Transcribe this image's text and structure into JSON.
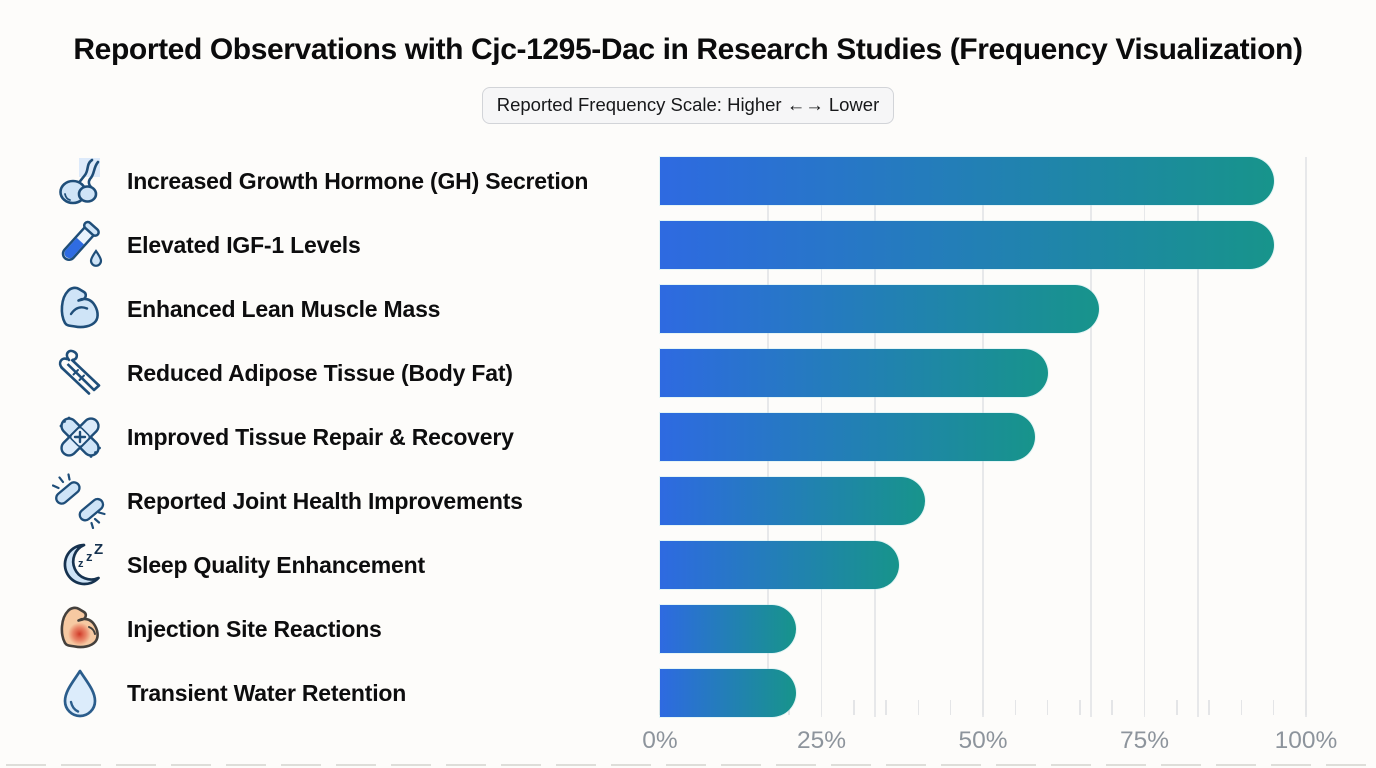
{
  "chart_data": {
    "type": "bar",
    "orientation": "horizontal",
    "title": "Reported Observations with Cjc-1295-Dac in Research Studies (Frequency Visualization)",
    "subtitle_badge": "Reported Frequency Scale: Higher ←→ Lower",
    "categories": [
      "Increased Growth Hormone (GH) Secretion",
      "Elevated IGF-1 Levels",
      "Enhanced Lean Muscle Mass",
      "Reduced Adipose Tissue (Body Fat)",
      "Improved Tissue Repair & Recovery",
      "Reported Joint Health Improvements",
      "Sleep Quality Enhancement",
      "Injection Site Reactions",
      "Transient Water Retention"
    ],
    "values": [
      95,
      95,
      68,
      60,
      58,
      41,
      37,
      21,
      21
    ],
    "unit": "%",
    "xlim": [
      0,
      100
    ],
    "x_ticks": [
      {
        "label": "0%",
        "pct": 0
      },
      {
        "label": "25%",
        "pct": 25
      },
      {
        "label": "50%",
        "pct": 50
      },
      {
        "label": "75%",
        "pct": 75
      },
      {
        "label": "100%",
        "pct": 100
      }
    ],
    "legend": "none",
    "grid": "vertical-light",
    "layout": {
      "gridline_pcts": [
        16.7,
        25,
        33.3,
        50,
        66.7,
        75,
        83.3,
        100
      ],
      "minor_tick_step_pct": 5
    },
    "colors": {
      "bar_gradient_start": "#2e6ae1",
      "bar_gradient_end": "#17948b",
      "gridline": "#e7e8ea",
      "axis_label": "#8d949c",
      "label_text": "#0d0d0e",
      "badge_bg": "#f6f6f7",
      "badge_border": "#d2d4d8",
      "background": "#fdfcfa",
      "icon_fill": "#cfe4f7",
      "icon_stroke": "#1f4e79"
    }
  },
  "rows": [
    {
      "icon": "pituitary-gland-icon",
      "label": "Increased Growth Hormone (GH) Secretion",
      "value_pct": 95
    },
    {
      "icon": "test-tube-icon",
      "label": "Elevated IGF-1 Levels",
      "value_pct": 95
    },
    {
      "icon": "flexed-bicep-icon",
      "label": "Enhanced Lean Muscle Mass",
      "value_pct": 68
    },
    {
      "icon": "body-fat-caliper-icon",
      "label": "Reduced Adipose Tissue (Body Fat)",
      "value_pct": 60
    },
    {
      "icon": "crossed-bandages-icon",
      "label": "Improved Tissue Repair & Recovery",
      "value_pct": 58
    },
    {
      "icon": "joint-icon",
      "label": "Reported Joint Health Improvements",
      "value_pct": 41
    },
    {
      "icon": "sleep-moon-icon",
      "label": "Sleep Quality Enhancement",
      "value_pct": 37
    },
    {
      "icon": "injection-arm-icon",
      "label": "Injection Site Reactions",
      "value_pct": 21
    },
    {
      "icon": "water-droplet-icon",
      "label": "Transient Water Retention",
      "value_pct": 21
    }
  ]
}
